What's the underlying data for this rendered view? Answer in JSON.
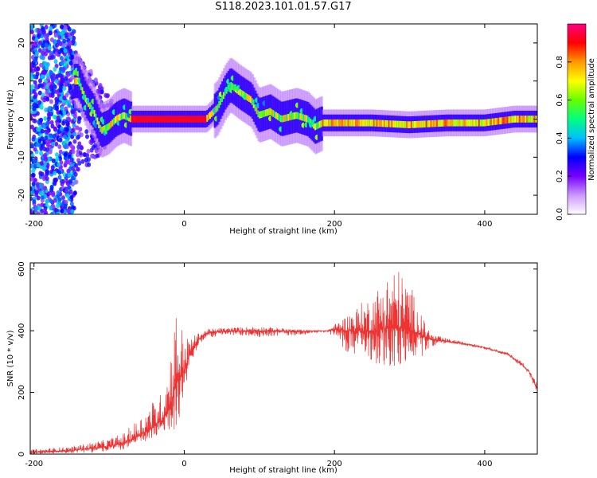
{
  "figure_title": "S118.2023.101.01.57.G17",
  "chart_data": [
    {
      "type": "heatmap",
      "title": "S118.2023.101.01.57.G17",
      "xlabel": "Height of straight line (km)",
      "ylabel": "Frequency (Hz)",
      "xlim": [
        -205,
        470
      ],
      "ylim": [
        -25,
        25
      ],
      "x_ticks": [
        "-200",
        "0",
        "200",
        "400"
      ],
      "y_ticks": [
        "20",
        "10",
        "0",
        "-10",
        "-20"
      ],
      "colorbar": {
        "label": "Normalized spectral amplitude",
        "range": [
          0,
          1
        ],
        "ticks": [
          "0.0",
          "0.2",
          "0.4",
          "0.6",
          "0.8"
        ],
        "colors": [
          "#ffffff",
          "#cc99ff",
          "#7700ff",
          "#0000ff",
          "#00bfff",
          "#00ff80",
          "#66ff00",
          "#ffff00",
          "#ff9900",
          "#ff0000",
          "#ff0080"
        ]
      },
      "ridge_frequency_hz": [
        {
          "x": -140,
          "y": 10
        },
        {
          "x": -130,
          "y": 5
        },
        {
          "x": -120,
          "y": 2
        },
        {
          "x": -110,
          "y": -3
        },
        {
          "x": -100,
          "y": -2
        },
        {
          "x": -90,
          "y": 0
        },
        {
          "x": -80,
          "y": 1
        },
        {
          "x": -70,
          "y": 0
        },
        {
          "x": 0,
          "y": 0
        },
        {
          "x": 30,
          "y": 0
        },
        {
          "x": 45,
          "y": 3
        },
        {
          "x": 55,
          "y": 7
        },
        {
          "x": 62,
          "y": 9
        },
        {
          "x": 75,
          "y": 7
        },
        {
          "x": 90,
          "y": 5
        },
        {
          "x": 100,
          "y": 1
        },
        {
          "x": 115,
          "y": 2
        },
        {
          "x": 130,
          "y": 0
        },
        {
          "x": 150,
          "y": 1
        },
        {
          "x": 165,
          "y": 0
        },
        {
          "x": 175,
          "y": -2
        },
        {
          "x": 185,
          "y": -1
        },
        {
          "x": 250,
          "y": -1
        },
        {
          "x": 300,
          "y": -1.5
        },
        {
          "x": 350,
          "y": -1
        },
        {
          "x": 400,
          "y": -1
        },
        {
          "x": 440,
          "y": 0
        },
        {
          "x": 470,
          "y": 0
        }
      ]
    },
    {
      "type": "line",
      "title": "",
      "xlabel": "Height of straight line (km)",
      "ylabel": "SNR (10 * v/v)",
      "xlim": [
        -205,
        470
      ],
      "ylim": [
        0,
        620
      ],
      "x_ticks": [
        "-200",
        "0",
        "200",
        "400"
      ],
      "y_ticks": [
        "0",
        "200",
        "400",
        "600"
      ],
      "series": [
        {
          "color": "#ee3333",
          "envelope": {
            "x": [
              -205,
              -150,
              -120,
              -100,
              -80,
              -60,
              -40,
              -30,
              -20,
              -10,
              0,
              10,
              20,
              30,
              50,
              100,
              150,
              190,
              200,
              220,
              250,
              280,
              300,
              320,
              330,
              350,
              380,
              400,
              430,
              450,
              460,
              470
            ],
            "lower": [
              0,
              3,
              5,
              8,
              15,
              30,
              50,
              60,
              70,
              80,
              180,
              300,
              355,
              375,
              385,
              380,
              385,
              395,
              380,
              320,
              300,
              260,
              300,
              320,
              350,
              360,
              350,
              340,
              320,
              280,
              250,
              200
            ],
            "upper": [
              15,
              25,
              40,
              50,
              70,
              120,
              180,
              200,
              320,
              500,
              380,
              380,
              395,
              405,
              410,
              415,
              405,
              400,
              420,
              460,
              520,
              620,
              560,
              430,
              390,
              375,
              360,
              350,
              330,
              300,
              270,
              230
            ],
            "mean": [
              5,
              12,
              20,
              25,
              35,
              60,
              90,
              110,
              150,
              230,
              270,
              340,
              375,
              392,
              398,
              400,
              398,
              400,
              405,
              400,
              400,
              410,
              405,
              380,
              370,
              365,
              355,
              345,
              325,
              290,
              265,
              210
            ]
          }
        }
      ]
    }
  ]
}
